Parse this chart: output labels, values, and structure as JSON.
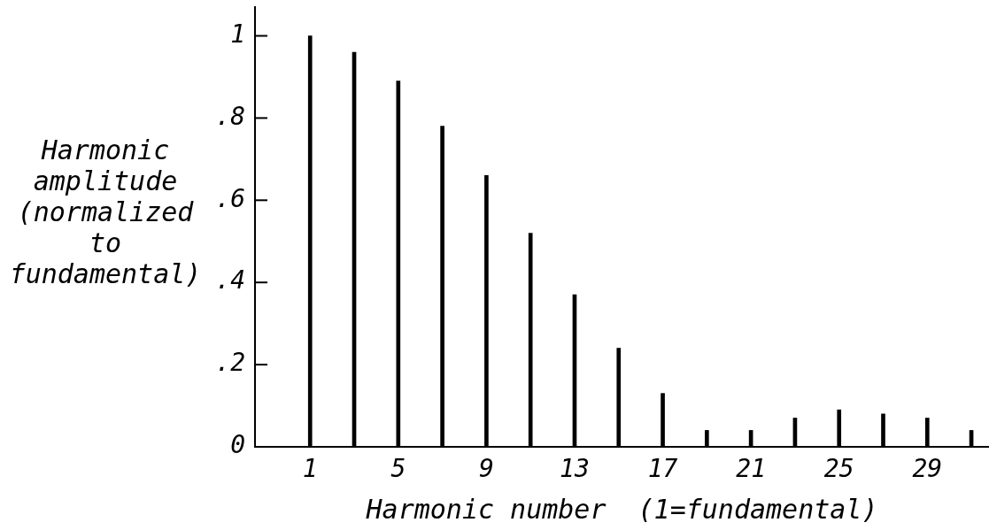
{
  "chart_data": {
    "type": "bar",
    "x": [
      1,
      3,
      5,
      7,
      9,
      11,
      13,
      15,
      17,
      19,
      21,
      23,
      25,
      27,
      29,
      31
    ],
    "values": [
      1,
      0.96,
      0.89,
      0.78,
      0.66,
      0.52,
      0.37,
      0.24,
      0.13,
      0.04,
      0.04,
      0.07,
      0.09,
      0.08,
      0.07,
      0.04
    ],
    "color": "#000000",
    "xlabel": "Harmonic number  (1=fundamental)",
    "ylabel": "Harmonic amplitude (normalized to fundamental)",
    "xlim": [
      -1.5,
      31.8
    ],
    "xticks": [
      1,
      5,
      9,
      13,
      17,
      21,
      25,
      29
    ],
    "ylim": [
      0,
      1.07
    ],
    "yticks": [
      0,
      {
        "value": 0.2,
        "label": ".2"
      },
      {
        "value": 0.4,
        "label": ".4"
      },
      {
        "value": 0.6,
        "label": ".6"
      },
      {
        "value": 0.8,
        "label": ".8"
      },
      1
    ]
  }
}
